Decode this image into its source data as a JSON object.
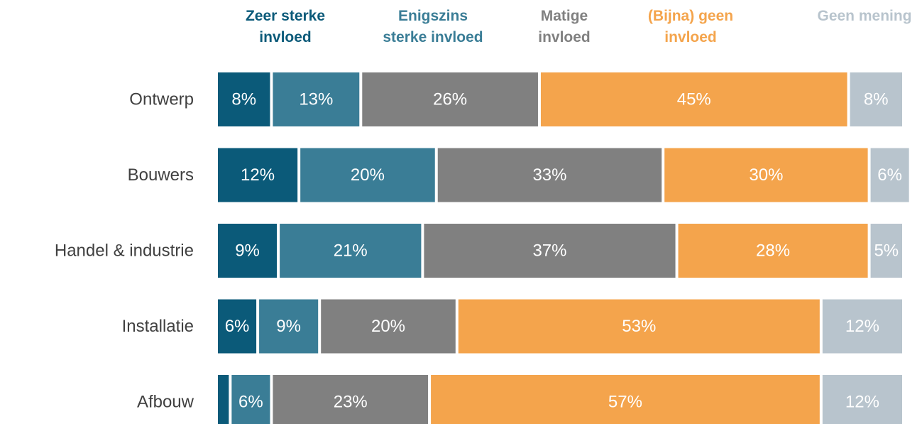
{
  "chart_data": {
    "type": "stacked-bar-horizontal",
    "categories": [
      "Ontwerp",
      "Bouwers",
      "Handel & industrie",
      "Installatie",
      "Afbouw"
    ],
    "xlim": [
      0,
      100
    ],
    "series": [
      {
        "name": "Zeer sterke\ninvloed",
        "color": "#0b5a79",
        "values": [
          8,
          12,
          9,
          6,
          2
        ],
        "value_labels": [
          "8%",
          "12%",
          "9%",
          "6%",
          null
        ]
      },
      {
        "name": "Enigszins\nsterke invloed",
        "color": "#3a7d96",
        "values": [
          13,
          20,
          21,
          9,
          6
        ],
        "value_labels": [
          "13%",
          "20%",
          "21%",
          "9%",
          "6%"
        ]
      },
      {
        "name": "Matige\ninvloed",
        "color": "#808080",
        "values": [
          26,
          33,
          37,
          20,
          23
        ],
        "value_labels": [
          "26%",
          "33%",
          "37%",
          "20%",
          "23%"
        ]
      },
      {
        "name": "(Bijna) geen\ninvloed",
        "color": "#f4a44c",
        "values": [
          45,
          30,
          28,
          53,
          57
        ],
        "value_labels": [
          "45%",
          "30%",
          "28%",
          "53%",
          "57%"
        ]
      },
      {
        "name": "Geen mening",
        "color": "#b8c4cd",
        "values": [
          8,
          6,
          5,
          12,
          12
        ],
        "value_labels": [
          "8%",
          "6%",
          "5%",
          "12%",
          "12%"
        ]
      }
    ]
  }
}
